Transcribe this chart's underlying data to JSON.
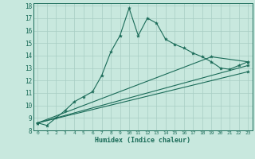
{
  "xlabel": "Humidex (Indice chaleur)",
  "xlim": [
    -0.5,
    23.5
  ],
  "ylim": [
    8,
    18.2
  ],
  "xticks": [
    0,
    1,
    2,
    3,
    4,
    5,
    6,
    7,
    8,
    9,
    10,
    11,
    12,
    13,
    14,
    15,
    16,
    17,
    18,
    19,
    20,
    21,
    22,
    23
  ],
  "yticks": [
    8,
    9,
    10,
    11,
    12,
    13,
    14,
    15,
    16,
    17,
    18
  ],
  "bg_color": "#c8e8de",
  "grid_color": "#a8cdc4",
  "line_color": "#1a6b58",
  "line1_x": [
    0,
    1,
    2,
    3,
    4,
    5,
    6,
    7,
    8,
    9,
    10,
    11,
    12,
    13,
    14,
    15,
    16,
    17,
    18,
    19,
    20,
    21,
    22,
    23
  ],
  "line1_y": [
    8.6,
    8.4,
    9.0,
    9.6,
    10.3,
    10.7,
    11.1,
    12.4,
    14.3,
    15.6,
    17.8,
    15.6,
    17.0,
    16.6,
    15.3,
    14.9,
    14.6,
    14.2,
    13.9,
    13.5,
    13.0,
    12.9,
    13.2,
    13.5
  ],
  "line2_x": [
    0,
    19,
    23
  ],
  "line2_y": [
    8.6,
    13.9,
    13.5
  ],
  "line3_x": [
    0,
    23
  ],
  "line3_y": [
    8.6,
    13.2
  ],
  "line4_x": [
    0,
    23
  ],
  "line4_y": [
    8.6,
    12.7
  ]
}
